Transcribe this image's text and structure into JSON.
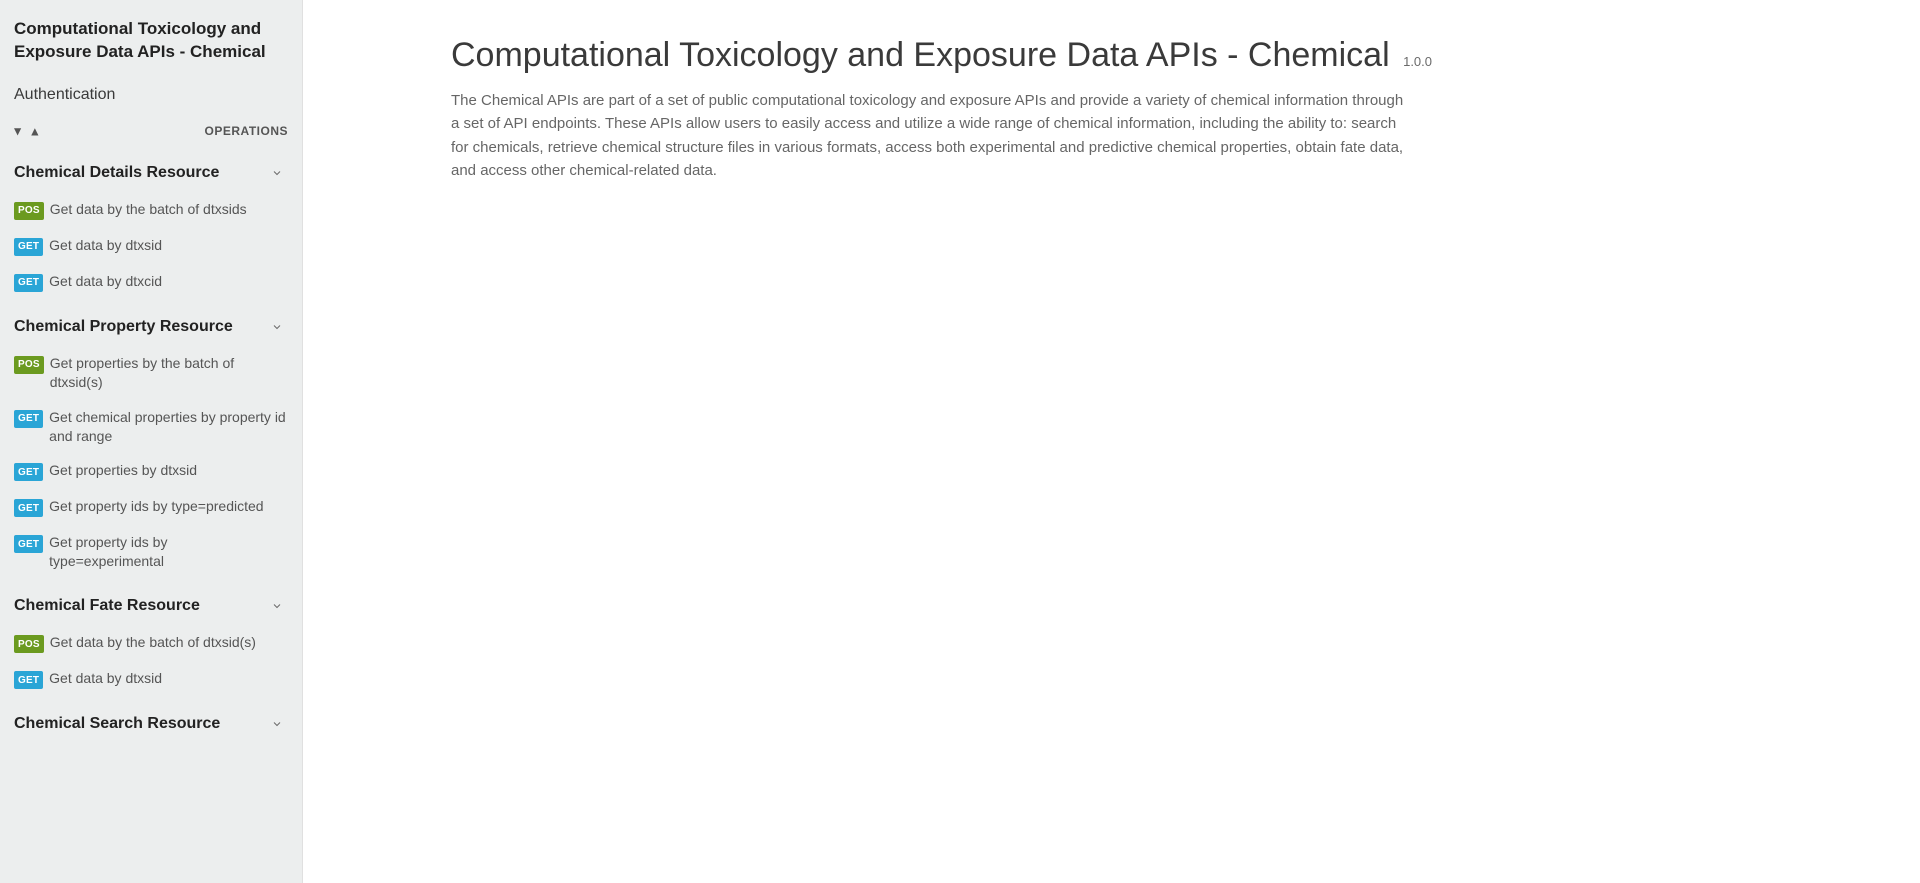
{
  "sidebar": {
    "title": "Computational Toxicology and Exposure Data APIs - Chemical",
    "auth_label": "Authentication",
    "expand_all_glyph": "▼",
    "collapse_all_glyph": "▲",
    "operations_label": "OPERATIONS",
    "sections": [
      {
        "label": "Chemical Details Resource",
        "ops": [
          {
            "method": "POS",
            "method_class": "badge-post",
            "text": "Get data by the batch of dtxsids"
          },
          {
            "method": "GET",
            "method_class": "badge-get",
            "text": "Get data by dtxsid"
          },
          {
            "method": "GET",
            "method_class": "badge-get",
            "text": "Get data by dtxcid"
          }
        ]
      },
      {
        "label": "Chemical Property Resource",
        "ops": [
          {
            "method": "POS",
            "method_class": "badge-post",
            "text": "Get properties by the batch of dtxsid(s)"
          },
          {
            "method": "GET",
            "method_class": "badge-get",
            "text": "Get chemical properties by property id and range"
          },
          {
            "method": "GET",
            "method_class": "badge-get",
            "text": "Get properties by dtxsid"
          },
          {
            "method": "GET",
            "method_class": "badge-get",
            "text": "Get property ids by type=predicted"
          },
          {
            "method": "GET",
            "method_class": "badge-get",
            "text": "Get property ids by type=experimental"
          }
        ]
      },
      {
        "label": "Chemical Fate Resource",
        "ops": [
          {
            "method": "POS",
            "method_class": "badge-post",
            "text": "Get data by the batch of dtxsid(s)"
          },
          {
            "method": "GET",
            "method_class": "badge-get",
            "text": "Get data by dtxsid"
          }
        ]
      },
      {
        "label": "Chemical Search Resource",
        "ops": []
      }
    ]
  },
  "main": {
    "title": "Computational Toxicology and Exposure Data APIs - Chemical",
    "version": "1.0.0",
    "description": "The Chemical APIs are part of a set of public computational toxicology and exposure APIs and provide a variety of chemical information through a set of API endpoints. These APIs allow users to easily access and utilize a wide range of chemical information, including the ability to: search for chemicals, retrieve chemical structure files in various formats, access both experimental and predictive chemical properties, obtain fate data, and access other chemical-related data."
  },
  "colors": {
    "sidebar_bg": "#eceeee",
    "main_bg": "#ffffff",
    "text_primary": "#333333",
    "text_muted": "#666666",
    "badge_get": "#2aa5d6",
    "badge_post": "#6b9a1f"
  }
}
